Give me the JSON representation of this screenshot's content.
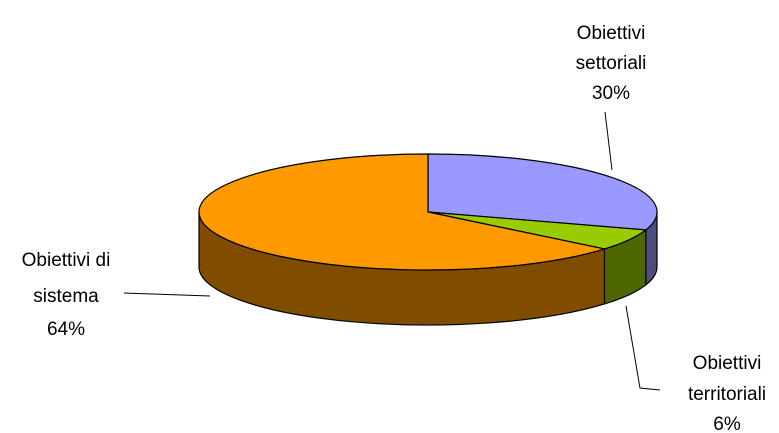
{
  "chart_data": {
    "type": "pie",
    "style": "3d-exploded-none",
    "title": "",
    "slices": [
      {
        "name_line1": "Obiettivi",
        "name_line2": "settoriali",
        "percent_label": "30%",
        "value": 30,
        "color": "#9999ff",
        "side_color": "#4d4d80"
      },
      {
        "name_line1": "Obiettivi",
        "name_line2": "territoriali",
        "percent_label": "6%",
        "value": 6,
        "color": "#99cc00",
        "side_color": "#4d6600"
      },
      {
        "name_line1": "Obiettivi di",
        "name_line2": "sistema",
        "percent_label": "64%",
        "value": 64,
        "color": "#ff9900",
        "side_color": "#804d00"
      }
    ]
  }
}
